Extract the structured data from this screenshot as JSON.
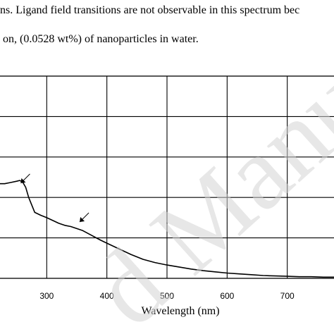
{
  "captions": {
    "line1": "ns. Ligand field transitions are not observable in this spectrum bec",
    "line2": "on, (0.0528 wt%) of nanoparticles in water."
  },
  "watermark": "d Manusc",
  "chart_data": {
    "type": "line",
    "title": "",
    "xlabel": "Wavelength (nm)",
    "ylabel": "",
    "x_ticks": [
      300,
      400,
      500,
      600,
      700
    ],
    "xlim": [
      200,
      800
    ],
    "ylim": [
      0,
      5
    ],
    "grid": true,
    "series": [
      {
        "x": [
          200,
          210,
          220,
          230,
          240,
          250,
          255,
          260,
          265,
          270,
          280,
          290,
          300,
          310,
          320,
          330,
          340,
          350,
          360,
          370,
          380,
          390,
          400,
          420,
          440,
          460,
          480,
          500,
          520,
          540,
          560,
          580,
          600,
          620,
          640,
          660,
          680,
          700,
          720,
          740,
          760,
          780,
          800
        ],
        "y": [
          2.38,
          2.33,
          2.34,
          2.34,
          2.37,
          2.4,
          2.42,
          2.38,
          2.25,
          2.0,
          1.63,
          1.56,
          1.5,
          1.43,
          1.36,
          1.31,
          1.28,
          1.23,
          1.18,
          1.1,
          1.02,
          0.94,
          0.87,
          0.73,
          0.59,
          0.47,
          0.39,
          0.33,
          0.28,
          0.23,
          0.19,
          0.16,
          0.13,
          0.11,
          0.09,
          0.07,
          0.06,
          0.05,
          0.04,
          0.04,
          0.03,
          0.03,
          0.03
        ]
      }
    ],
    "annotations": [
      {
        "type": "arrow",
        "x": 272,
        "y": 2.58
      },
      {
        "type": "arrow",
        "x": 370,
        "y": 1.62
      }
    ]
  }
}
